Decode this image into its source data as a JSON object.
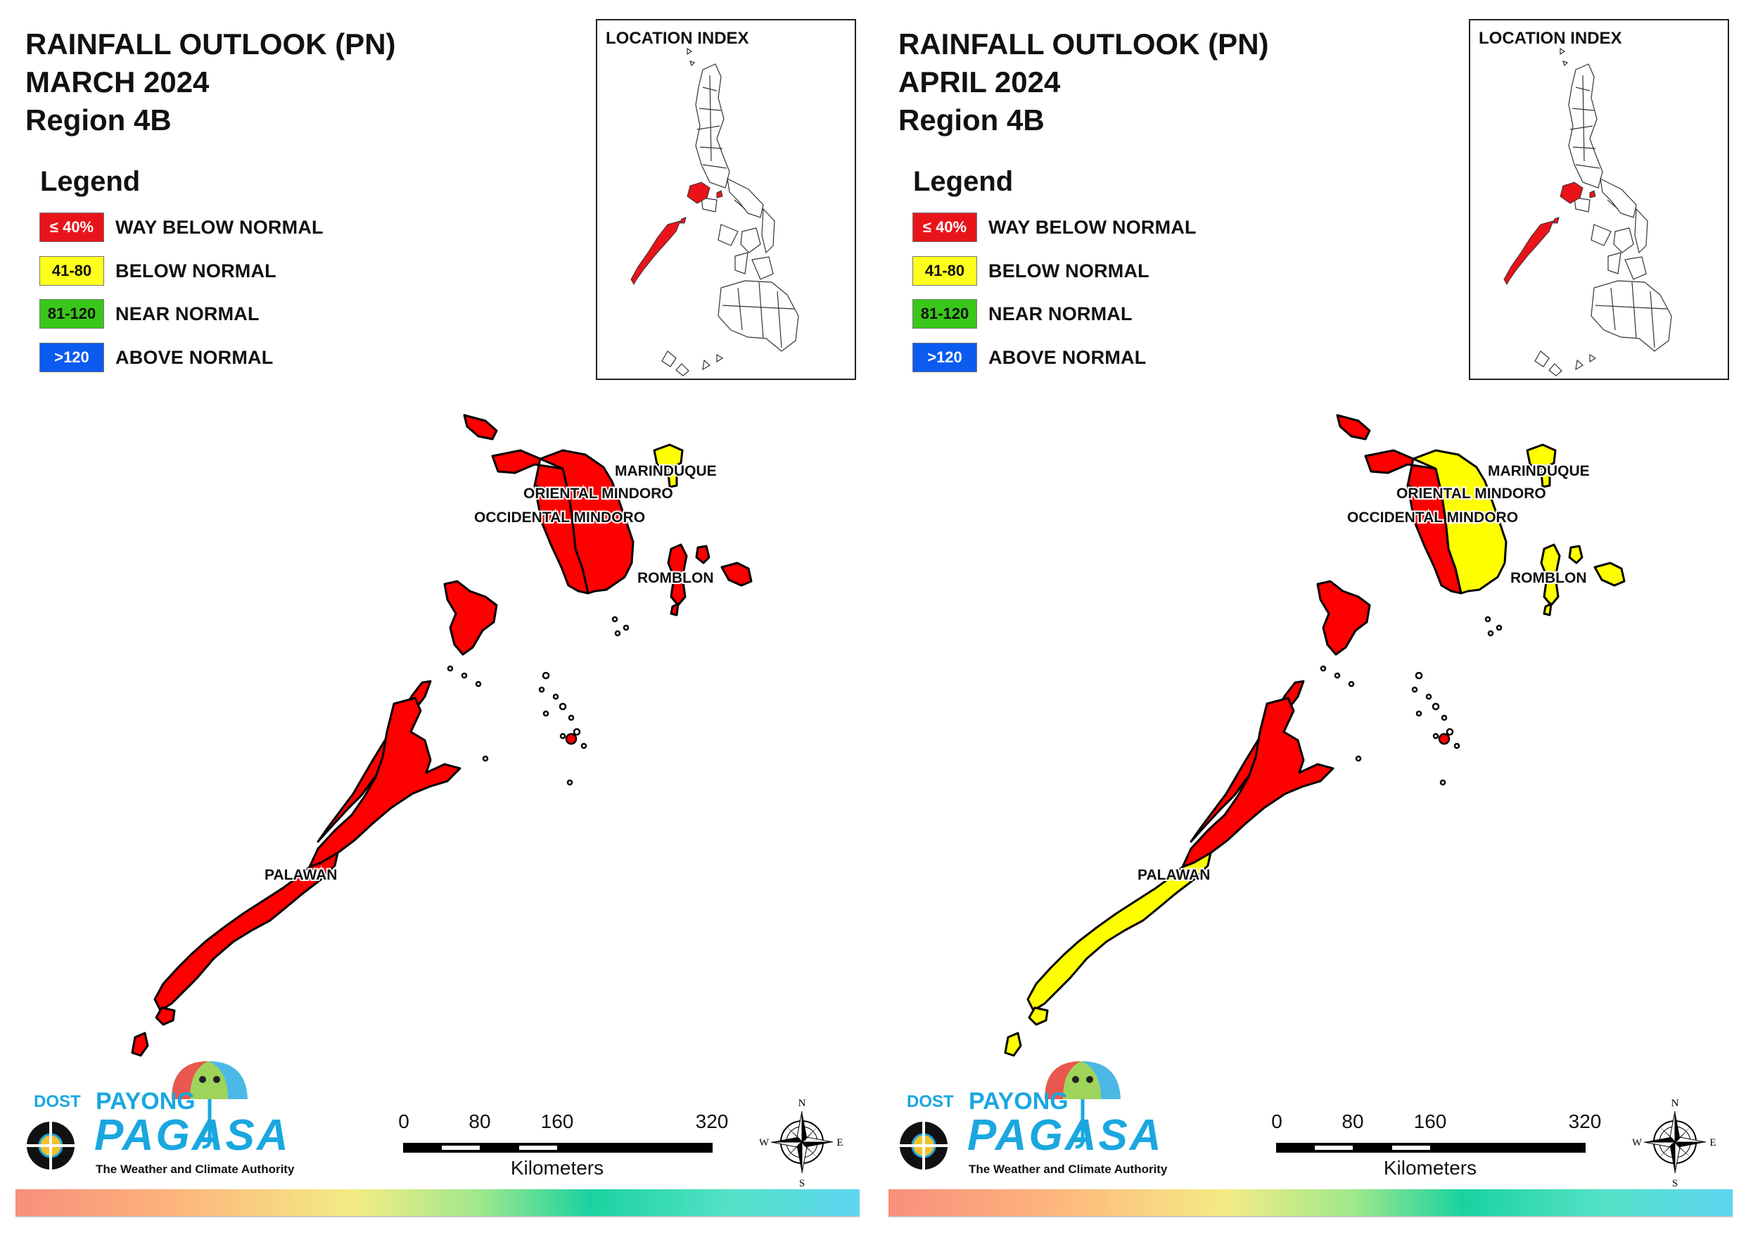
{
  "colors": {
    "way_below": "#ff0000",
    "below": "#ffff00",
    "near": "#33cc00",
    "above": "#0055ff"
  },
  "legend": {
    "heading": "Legend",
    "items": [
      {
        "swatch_text": "≤ 40%",
        "label": "WAY BELOW NORMAL",
        "color": "#e8141a",
        "text_color": "#ffffff"
      },
      {
        "swatch_text": "41-80",
        "label": "BELOW NORMAL",
        "color": "#ffff1e",
        "text_color": "#111111"
      },
      {
        "swatch_text": "81-120",
        "label": "NEAR NORMAL",
        "color": "#39c819",
        "text_color": "#111111"
      },
      {
        "swatch_text": ">120",
        "label": "ABOVE NORMAL",
        "color": "#0b5bf0",
        "text_color": "#ffffff"
      }
    ]
  },
  "inset": {
    "title": "LOCATION INDEX"
  },
  "scale": {
    "ticks": [
      "0",
      "80",
      "160",
      "320"
    ],
    "units": "Kilometers"
  },
  "compass": {
    "n": "N",
    "s": "S",
    "e": "E",
    "w": "W"
  },
  "logo": {
    "dost": "DOST",
    "payong": "PAYONG",
    "pagasa": "PAGASA",
    "tagline": "The Weather and Climate Authority"
  },
  "panels": [
    {
      "title_line1": "RAINFALL OUTLOOK (PN)",
      "title_line2": "MARCH 2024",
      "title_line3": "Region 4B",
      "provinces": {
        "marinduque": "below",
        "oriental_mindoro": "way_below",
        "occidental_mindoro": "way_below",
        "romblon": "way_below",
        "palawan_north": "way_below",
        "palawan_south": "way_below"
      },
      "labels": {
        "marinduque": "MARINDUQUE",
        "oriental_mindoro": "ORIENTAL MINDORO",
        "occidental_mindoro": "OCCIDENTAL MINDORO",
        "romblon": "ROMBLON",
        "palawan": "PALAWAN"
      }
    },
    {
      "title_line1": "RAINFALL OUTLOOK (PN)",
      "title_line2": "APRIL 2024",
      "title_line3": "Region 4B",
      "provinces": {
        "marinduque": "below",
        "oriental_mindoro": "below",
        "occidental_mindoro": "way_below",
        "romblon": "below",
        "palawan_north": "way_below",
        "palawan_south": "below"
      },
      "labels": {
        "marinduque": "MARINDUQUE",
        "oriental_mindoro": "ORIENTAL MINDORO",
        "occidental_mindoro": "OCCIDENTAL MINDORO",
        "romblon": "ROMBLON",
        "palawan": "PALAWAN"
      }
    }
  ]
}
